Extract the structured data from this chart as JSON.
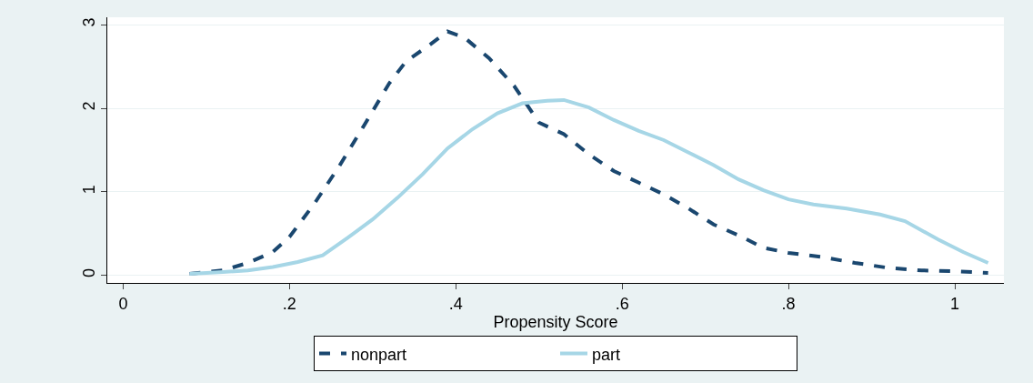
{
  "chart_data": {
    "type": "line",
    "xlabel": "Propensity Score",
    "xlim": [
      -0.019,
      1.059
    ],
    "ylim": [
      -0.09,
      3.09
    ],
    "xticks": [
      0,
      {
        "value": 0.2,
        "label": ".2"
      },
      {
        "value": 0.4,
        "label": ".4"
      },
      {
        "value": 0.6,
        "label": ".6"
      },
      {
        "value": 0.8,
        "label": ".8"
      },
      1
    ],
    "yticks": [
      0,
      1,
      2,
      3
    ],
    "grid": "y",
    "legend": "bottom",
    "marker": "none",
    "series": [
      {
        "name": "nonpart",
        "color": "#1a476f",
        "line_style": "dashed",
        "x": [
          0.08,
          0.12,
          0.15,
          0.18,
          0.2,
          0.23,
          0.26,
          0.29,
          0.32,
          0.34,
          0.37,
          0.39,
          0.41,
          0.44,
          0.47,
          0.5,
          0.53,
          0.56,
          0.59,
          0.62,
          0.65,
          0.68,
          0.71,
          0.74,
          0.77,
          0.8,
          0.84,
          0.88,
          0.92,
          0.96,
          1.0,
          1.04
        ],
        "values": [
          0.02,
          0.06,
          0.15,
          0.28,
          0.46,
          0.86,
          1.31,
          1.8,
          2.3,
          2.56,
          2.77,
          2.92,
          2.85,
          2.6,
          2.27,
          1.83,
          1.69,
          1.45,
          1.25,
          1.11,
          0.97,
          0.8,
          0.61,
          0.48,
          0.33,
          0.27,
          0.22,
          0.15,
          0.09,
          0.06,
          0.05,
          0.03
        ]
      },
      {
        "name": "part",
        "color": "#a6d6e6",
        "line_style": "solid",
        "x": [
          0.08,
          0.12,
          0.15,
          0.18,
          0.21,
          0.24,
          0.27,
          0.3,
          0.33,
          0.36,
          0.39,
          0.42,
          0.45,
          0.48,
          0.51,
          0.53,
          0.56,
          0.59,
          0.62,
          0.65,
          0.68,
          0.71,
          0.74,
          0.77,
          0.8,
          0.83,
          0.87,
          0.91,
          0.94,
          0.98,
          1.01,
          1.04
        ],
        "values": [
          0.02,
          0.04,
          0.06,
          0.1,
          0.16,
          0.24,
          0.45,
          0.67,
          0.93,
          1.21,
          1.52,
          1.75,
          1.94,
          2.06,
          2.09,
          2.1,
          2.01,
          1.86,
          1.73,
          1.62,
          1.47,
          1.32,
          1.15,
          1.02,
          0.91,
          0.85,
          0.8,
          0.73,
          0.65,
          0.43,
          0.28,
          0.15
        ]
      }
    ]
  }
}
